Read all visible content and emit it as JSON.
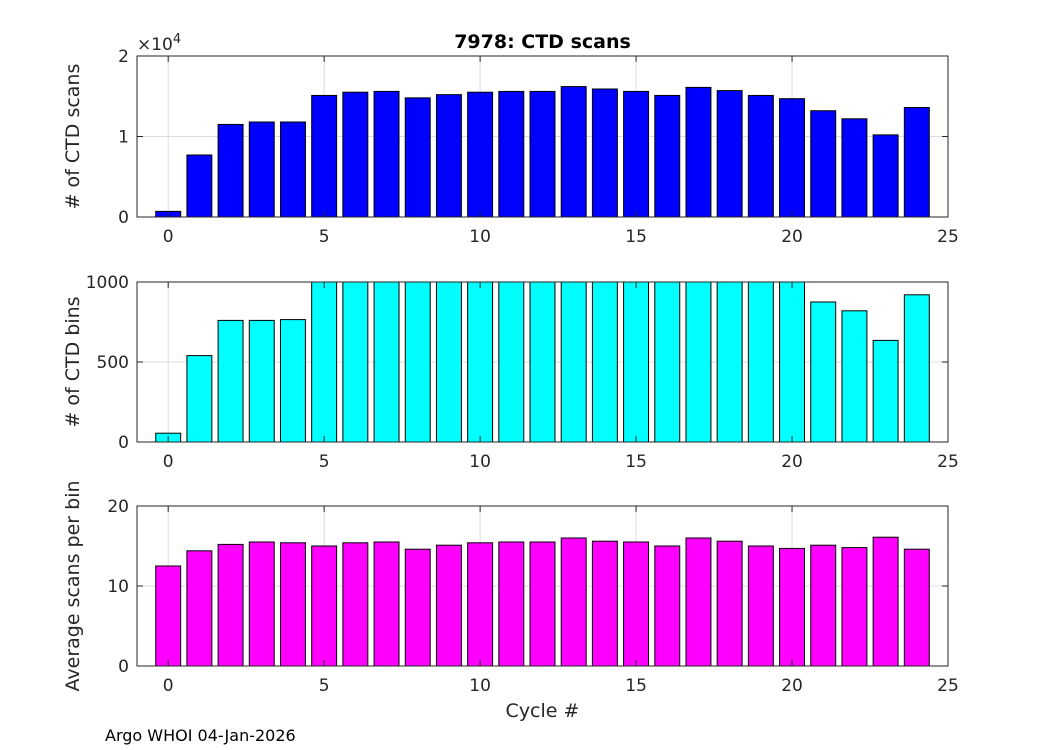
{
  "chart_data": [
    {
      "type": "bar",
      "title": "7978: CTD scans",
      "xlabel": "",
      "ylabel": "# of CTD scans",
      "y_exponent_label": "×10",
      "y_exponent_power": "4",
      "color": "#0000ff",
      "xlim": [
        -1,
        25
      ],
      "ylim": [
        0,
        2
      ],
      "xticks": [
        0,
        5,
        10,
        15,
        20,
        25
      ],
      "yticks": [
        0,
        1,
        2
      ],
      "x": [
        0,
        1,
        2,
        3,
        4,
        5,
        6,
        7,
        8,
        9,
        10,
        11,
        12,
        13,
        14,
        15,
        16,
        17,
        18,
        19,
        20,
        21,
        22,
        23,
        24
      ],
      "values": [
        0.07,
        0.77,
        1.15,
        1.18,
        1.18,
        1.51,
        1.55,
        1.56,
        1.48,
        1.52,
        1.55,
        1.56,
        1.56,
        1.62,
        1.59,
        1.56,
        1.51,
        1.61,
        1.57,
        1.51,
        1.47,
        1.32,
        1.22,
        1.02,
        1.36
      ],
      "grid": true
    },
    {
      "type": "bar",
      "title": "",
      "xlabel": "",
      "ylabel": "# of CTD bins",
      "color": "#00ffff",
      "xlim": [
        -1,
        25
      ],
      "ylim": [
        0,
        1000
      ],
      "xticks": [
        0,
        5,
        10,
        15,
        20,
        25
      ],
      "yticks": [
        0,
        500,
        1000
      ],
      "x": [
        0,
        1,
        2,
        3,
        4,
        5,
        6,
        7,
        8,
        9,
        10,
        11,
        12,
        13,
        14,
        15,
        16,
        17,
        18,
        19,
        20,
        21,
        22,
        23,
        24
      ],
      "values": [
        55,
        540,
        760,
        760,
        765,
        1000,
        1000,
        1000,
        1000,
        1000,
        1000,
        1000,
        1000,
        1000,
        1000,
        1000,
        1000,
        1000,
        1000,
        1000,
        1000,
        875,
        820,
        635,
        920
      ],
      "grid": true
    },
    {
      "type": "bar",
      "title": "",
      "xlabel": "Cycle #",
      "ylabel": "Average scans per bin",
      "color": "#ff00ff",
      "xlim": [
        -1,
        25
      ],
      "ylim": [
        0,
        20
      ],
      "xticks": [
        0,
        5,
        10,
        15,
        20,
        25
      ],
      "yticks": [
        0,
        10,
        20
      ],
      "x": [
        0,
        1,
        2,
        3,
        4,
        5,
        6,
        7,
        8,
        9,
        10,
        11,
        12,
        13,
        14,
        15,
        16,
        17,
        18,
        19,
        20,
        21,
        22,
        23,
        24
      ],
      "values": [
        12.5,
        14.4,
        15.2,
        15.5,
        15.4,
        15.0,
        15.4,
        15.5,
        14.6,
        15.1,
        15.4,
        15.5,
        15.5,
        16.0,
        15.6,
        15.5,
        15.0,
        16.0,
        15.6,
        15.0,
        14.7,
        15.1,
        14.8,
        16.1,
        14.6
      ],
      "grid": true
    }
  ],
  "footer": "Argo WHOI 04-Jan-2026"
}
